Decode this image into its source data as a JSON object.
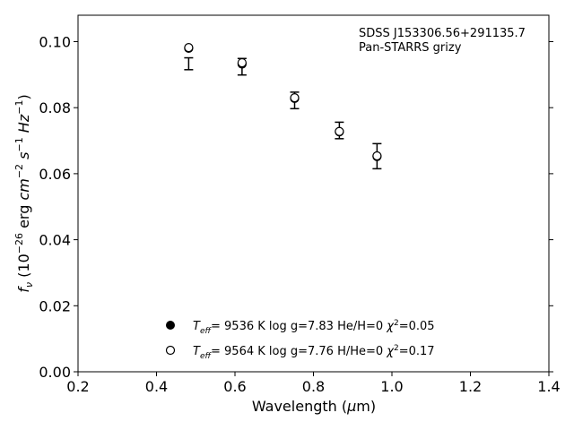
{
  "chart_data": {
    "type": "scatter",
    "title": "",
    "annotation_lines": [
      "SDSS J153306.56+291135.7",
      "Pan-STARRS grizy"
    ],
    "xlabel": "Wavelength (μm)",
    "xlabel_parts": {
      "pre": "Wavelength (",
      "mu": "μ",
      "post": "m)"
    },
    "ylabel": "fν (10⁻²⁶ erg cm⁻² s⁻¹ Hz⁻¹)",
    "xlim": [
      0.2,
      1.4
    ],
    "ylim": [
      0.0,
      0.108
    ],
    "xticks": [
      0.2,
      0.4,
      0.6,
      0.8,
      1.0,
      1.2,
      1.4
    ],
    "xtick_labels": [
      "0.2",
      "0.4",
      "0.6",
      "0.8",
      "1.0",
      "1.2",
      "1.4"
    ],
    "yticks": [
      0.0,
      0.02,
      0.04,
      0.06,
      0.08,
      0.1
    ],
    "ytick_labels": [
      "0.00",
      "0.02",
      "0.04",
      "0.06",
      "0.08",
      "0.10"
    ],
    "grid": false,
    "legend_position": "bottom-center",
    "observed": {
      "x": [
        0.482,
        0.618,
        0.752,
        0.866,
        0.962
      ],
      "y": [
        0.0933,
        0.0924,
        0.0822,
        0.0731,
        0.0653
      ],
      "yerr": [
        0.0018,
        0.0025,
        0.0025,
        0.0025,
        0.0038
      ]
    },
    "series": [
      {
        "name": "Teff= 9536 K log g=7.83 He/H=0 χ²=0.05",
        "marker": "filled-circle",
        "x": [
          0.482,
          0.618,
          0.752,
          0.866,
          0.962
        ],
        "y": [
          0.098,
          0.0932,
          0.0828,
          0.0727,
          0.0652
        ]
      },
      {
        "name": "Teff= 9564 K log g=7.76 H/He=0 χ²=0.17",
        "marker": "open-circle",
        "x": [
          0.482,
          0.618,
          0.752,
          0.866,
          0.962
        ],
        "y": [
          0.0982,
          0.0936,
          0.083,
          0.0728,
          0.0654
        ]
      }
    ],
    "legend_parts": [
      {
        "t": "T",
        "sub": "eff",
        "p1": "=  9536 K  log g=7.83  He/H=0  ",
        "chi": "χ",
        "sup": "2",
        "p2": "=0.05"
      },
      {
        "t": "T",
        "sub": "eff",
        "p1": "=  9564 K  log g=7.76  H/He=0  ",
        "chi": "χ",
        "sup": "2",
        "p2": "=0.17"
      }
    ],
    "colors": {
      "marker": "#000000",
      "axes": "#000000",
      "background": "#ffffff"
    }
  }
}
